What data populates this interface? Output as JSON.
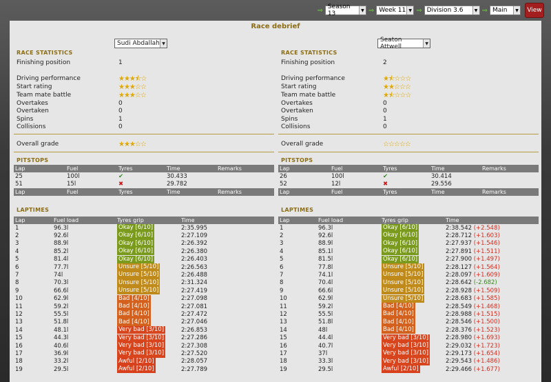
{
  "topbar": {
    "season": "Season 13",
    "week": "Week 11",
    "division": "Division 3.6",
    "view_mode": "Main",
    "view_button": "View"
  },
  "title": "Race debrief",
  "labels": {
    "race_statistics": "RACE STATISTICS",
    "finishing_position": "Finishing position",
    "driving_performance": "Driving performance",
    "start_rating": "Start rating",
    "team_mate_battle": "Team mate battle",
    "overtakes": "Overtakes",
    "overtaken": "Overtaken",
    "spins": "Spins",
    "collisions": "Collisions",
    "overall_grade": "Overall grade",
    "pitstops": "PITSTOPS",
    "laptimes": "LAPTIMES"
  },
  "pit_headers": {
    "lap": "Lap",
    "fuel": "Fuel",
    "tyres": "Tyres",
    "time": "Time",
    "remarks": "Remarks"
  },
  "lap_headers": {
    "lap": "Lap",
    "fuel_load": "Fuel load",
    "tyres_grip": "Tyres grip",
    "time": "Time"
  },
  "drivers": [
    {
      "name": "Sudi Abdallah",
      "finishing_position": "1",
      "driving_performance_stars": 3.5,
      "start_rating_stars": 3,
      "team_mate_battle_stars": 3,
      "overall_grade_stars": 3,
      "overtakes": "0",
      "overtaken": "0",
      "spins": "1",
      "collisions": "0",
      "pitstops": [
        {
          "lap": "25",
          "fuel": "100l",
          "tyres": "check",
          "time": "30.433",
          "remarks": ""
        },
        {
          "lap": "51",
          "fuel": "15l",
          "tyres": "cross",
          "time": "29.782",
          "remarks": ""
        }
      ],
      "laps": [
        {
          "lap": "1",
          "fuel": "96.3l",
          "grip": "Okay [6/10]",
          "gc": "okay",
          "time": "2:35.995",
          "diff": ""
        },
        {
          "lap": "2",
          "fuel": "92.6l",
          "grip": "Okay [6/10]",
          "gc": "okay",
          "time": "2:27.109",
          "diff": ""
        },
        {
          "lap": "3",
          "fuel": "88.9l",
          "grip": "Okay [6/10]",
          "gc": "okay",
          "time": "2:26.392",
          "diff": ""
        },
        {
          "lap": "4",
          "fuel": "85.2l",
          "grip": "Okay [6/10]",
          "gc": "okay",
          "time": "2:26.380",
          "diff": ""
        },
        {
          "lap": "5",
          "fuel": "81.4l",
          "grip": "Okay [6/10]",
          "gc": "okay",
          "time": "2:26.403",
          "diff": ""
        },
        {
          "lap": "6",
          "fuel": "77.7l",
          "grip": "Unsure [5/10]",
          "gc": "unsure",
          "time": "2:26.563",
          "diff": ""
        },
        {
          "lap": "7",
          "fuel": "74l",
          "grip": "Unsure [5/10]",
          "gc": "unsure",
          "time": "2:26.488",
          "diff": ""
        },
        {
          "lap": "8",
          "fuel": "70.3l",
          "grip": "Unsure [5/10]",
          "gc": "unsure",
          "time": "2:31.324",
          "diff": ""
        },
        {
          "lap": "9",
          "fuel": "66.6l",
          "grip": "Unsure [5/10]",
          "gc": "unsure",
          "time": "2:27.419",
          "diff": ""
        },
        {
          "lap": "10",
          "fuel": "62.9l",
          "grip": "Bad [4/10]",
          "gc": "bad",
          "time": "2:27.098",
          "diff": ""
        },
        {
          "lap": "11",
          "fuel": "59.2l",
          "grip": "Bad [4/10]",
          "gc": "bad",
          "time": "2:27.081",
          "diff": ""
        },
        {
          "lap": "12",
          "fuel": "55.5l",
          "grip": "Bad [4/10]",
          "gc": "bad",
          "time": "2:27.472",
          "diff": ""
        },
        {
          "lap": "13",
          "fuel": "51.8l",
          "grip": "Bad [4/10]",
          "gc": "bad",
          "time": "2:27.046",
          "diff": ""
        },
        {
          "lap": "14",
          "fuel": "48.1l",
          "grip": "Very bad [3/10]",
          "gc": "verybad",
          "time": "2:26.853",
          "diff": ""
        },
        {
          "lap": "15",
          "fuel": "44.3l",
          "grip": "Very bad [3/10]",
          "gc": "verybad",
          "time": "2:27.286",
          "diff": ""
        },
        {
          "lap": "16",
          "fuel": "40.6l",
          "grip": "Very bad [3/10]",
          "gc": "verybad",
          "time": "2:27.308",
          "diff": ""
        },
        {
          "lap": "17",
          "fuel": "36.9l",
          "grip": "Very bad [3/10]",
          "gc": "verybad",
          "time": "2:27.520",
          "diff": ""
        },
        {
          "lap": "18",
          "fuel": "33.2l",
          "grip": "Awful [2/10]",
          "gc": "awful",
          "time": "2:28.057",
          "diff": ""
        },
        {
          "lap": "19",
          "fuel": "29.5l",
          "grip": "Awful [2/10]",
          "gc": "awful",
          "time": "2:27.789",
          "diff": ""
        }
      ]
    },
    {
      "name": "Seaton Attwell",
      "finishing_position": "2",
      "driving_performance_stars": 1.5,
      "start_rating_stars": 2,
      "team_mate_battle_stars": 1.5,
      "overall_grade_stars": 0,
      "overtakes": "0",
      "overtaken": "0",
      "spins": "1",
      "collisions": "0",
      "pitstops": [
        {
          "lap": "26",
          "fuel": "100l",
          "tyres": "check",
          "time": "30.414",
          "remarks": ""
        },
        {
          "lap": "52",
          "fuel": "12l",
          "tyres": "cross",
          "time": "29.556",
          "remarks": ""
        }
      ],
      "laps": [
        {
          "lap": "1",
          "fuel": "96.3l",
          "grip": "Okay [6/10]",
          "gc": "okay",
          "time": "2:38.542",
          "diff": "(+2.548)",
          "dc": "red"
        },
        {
          "lap": "2",
          "fuel": "92.6l",
          "grip": "Okay [6/10]",
          "gc": "okay",
          "time": "2:28.712",
          "diff": "(+1.603)",
          "dc": "red"
        },
        {
          "lap": "3",
          "fuel": "88.9l",
          "grip": "Okay [6/10]",
          "gc": "okay",
          "time": "2:27.937",
          "diff": "(+1.546)",
          "dc": "red"
        },
        {
          "lap": "4",
          "fuel": "85.1l",
          "grip": "Okay [6/10]",
          "gc": "okay",
          "time": "2:27.891",
          "diff": "(+1.511)",
          "dc": "red"
        },
        {
          "lap": "5",
          "fuel": "81.5l",
          "grip": "Okay [6/10]",
          "gc": "okay",
          "time": "2:27.900",
          "diff": "(+1.497)",
          "dc": "red"
        },
        {
          "lap": "6",
          "fuel": "77.8l",
          "grip": "Unsure [5/10]",
          "gc": "unsure",
          "time": "2:28.127",
          "diff": "(+1.564)",
          "dc": "red"
        },
        {
          "lap": "7",
          "fuel": "74.1l",
          "grip": "Unsure [5/10]",
          "gc": "unsure",
          "time": "2:28.097",
          "diff": "(+1.609)",
          "dc": "red"
        },
        {
          "lap": "8",
          "fuel": "70.4l",
          "grip": "Unsure [5/10]",
          "gc": "unsure",
          "time": "2:28.642",
          "diff": "(-2.682)",
          "dc": "green"
        },
        {
          "lap": "9",
          "fuel": "66.6l",
          "grip": "Unsure [5/10]",
          "gc": "unsure",
          "time": "2:28.928",
          "diff": "(+1.509)",
          "dc": "red"
        },
        {
          "lap": "10",
          "fuel": "62.9l",
          "grip": "Unsure [5/10]",
          "gc": "unsure",
          "time": "2:28.683",
          "diff": "(+1.585)",
          "dc": "red"
        },
        {
          "lap": "11",
          "fuel": "59.2l",
          "grip": "Bad [4/10]",
          "gc": "bad",
          "time": "2:28.549",
          "diff": "(+1.468)",
          "dc": "red"
        },
        {
          "lap": "12",
          "fuel": "55.5l",
          "grip": "Bad [4/10]",
          "gc": "bad",
          "time": "2:28.988",
          "diff": "(+1.515)",
          "dc": "red"
        },
        {
          "lap": "13",
          "fuel": "51.8l",
          "grip": "Bad [4/10]",
          "gc": "bad",
          "time": "2:28.546",
          "diff": "(+1.500)",
          "dc": "red"
        },
        {
          "lap": "14",
          "fuel": "48l",
          "grip": "Bad [4/10]",
          "gc": "bad",
          "time": "2:28.376",
          "diff": "(+1.523)",
          "dc": "red"
        },
        {
          "lap": "15",
          "fuel": "44.4l",
          "grip": "Very bad [3/10]",
          "gc": "verybad",
          "time": "2:28.980",
          "diff": "(+1.693)",
          "dc": "red"
        },
        {
          "lap": "16",
          "fuel": "40.7l",
          "grip": "Very bad [3/10]",
          "gc": "verybad",
          "time": "2:29.032",
          "diff": "(+1.723)",
          "dc": "red"
        },
        {
          "lap": "17",
          "fuel": "37l",
          "grip": "Very bad [3/10]",
          "gc": "verybad",
          "time": "2:29.173",
          "diff": "(+1.654)",
          "dc": "red"
        },
        {
          "lap": "18",
          "fuel": "33.3l",
          "grip": "Very bad [3/10]",
          "gc": "verybad",
          "time": "2:29.543",
          "diff": "(+1.486)",
          "dc": "red"
        },
        {
          "lap": "19",
          "fuel": "29.5l",
          "grip": "Awful [2/10]",
          "gc": "awful",
          "time": "2:29.466",
          "diff": "(+1.677)",
          "dc": "red"
        }
      ]
    }
  ]
}
